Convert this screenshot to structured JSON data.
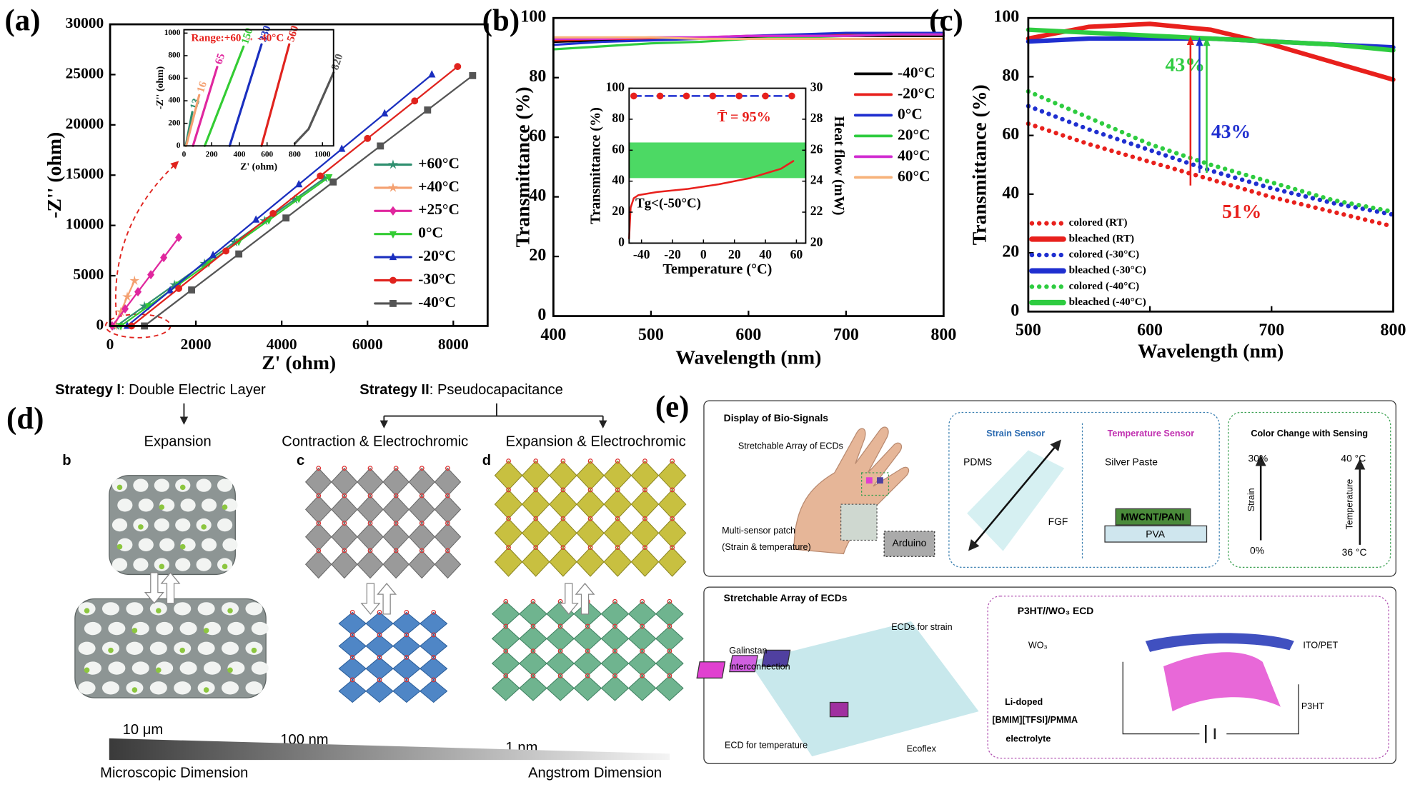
{
  "panel_labels": [
    "(a)",
    "(b)",
    "(c)",
    "(d)",
    "(e)"
  ],
  "chart_data": [
    {
      "type": "line",
      "xlabel": "Z' (ohm)",
      "ylabel": "-Z'' (ohm)",
      "xlim": [
        0,
        8800
      ],
      "xticks": [
        0,
        2000,
        4000,
        6000,
        8000
      ],
      "ylim": [
        0,
        30000
      ],
      "yticks": [
        0,
        5000,
        10000,
        15000,
        20000,
        25000,
        30000
      ],
      "legend": "lower right",
      "series": [
        {
          "name": "+60°C",
          "color": "#2f8f6f",
          "marker": "star",
          "x": [
            150,
            800,
            1500,
            2200,
            2900,
            3600,
            4300,
            5000
          ],
          "values": [
            0,
            1970,
            4090,
            6210,
            8330,
            10450,
            12570,
            14700
          ]
        },
        {
          "name": "+40°C",
          "color": "#f4a070",
          "marker": "star",
          "x": [
            100,
            250,
            400,
            570
          ],
          "values": [
            0,
            1400,
            2900,
            4500
          ]
        },
        {
          "name": "+25°C",
          "color": "#e0279e",
          "marker": "diamond",
          "x": [
            50,
            350,
            650,
            950,
            1250,
            1600
          ],
          "values": [
            0,
            1700,
            3400,
            5100,
            6800,
            8800
          ]
        },
        {
          "name": " 0°C",
          "color": "#33cc33",
          "marker": "triangle-down",
          "x": [
            250,
            900,
            1600,
            2300,
            3000,
            3700,
            4400,
            5100
          ],
          "values": [
            0,
            1980,
            4120,
            6250,
            8390,
            10520,
            12660,
            14800
          ]
        },
        {
          "name": "-20°C",
          "color": "#1a2fbf",
          "marker": "triangle",
          "x": [
            400,
            1400,
            2400,
            3400,
            4400,
            5400,
            6400,
            7500
          ],
          "values": [
            0,
            3520,
            7040,
            10560,
            14080,
            17600,
            21120,
            25000
          ]
        },
        {
          "name": "-30°C",
          "color": "#e0231e",
          "marker": "circle",
          "x": [
            500,
            1600,
            2700,
            3800,
            4900,
            6000,
            7100,
            8100
          ],
          "values": [
            0,
            3730,
            7460,
            11190,
            14920,
            18650,
            22380,
            25800
          ]
        },
        {
          "name": "-40°C",
          "color": "#555555",
          "marker": "square",
          "x": [
            800,
            1900,
            3000,
            4100,
            5200,
            6300,
            7400,
            8450
          ],
          "values": [
            0,
            3580,
            7160,
            10740,
            14320,
            17900,
            21480,
            24900
          ]
        }
      ]
    },
    {
      "type": "line",
      "title": "Range:+60 → -40°C",
      "title_color": "#e8201c",
      "xlabel": "Z' (ohm)",
      "ylabel": "-Z'' (ohm)",
      "xlim": [
        0,
        1080
      ],
      "xticks": [
        0,
        200,
        400,
        600,
        800,
        1000
      ],
      "ylim": [
        0,
        1030
      ],
      "yticks": [
        0,
        200,
        400,
        600,
        800,
        1000
      ],
      "series": [
        {
          "name": "13",
          "color": "#2f8f6f",
          "x": [
            13,
            60
          ],
          "values": [
            0,
            300
          ]
        },
        {
          "name": "16",
          "color": "#f4a070",
          "x": [
            16,
            110
          ],
          "values": [
            0,
            450
          ]
        },
        {
          "name": "65",
          "color": "#e0279e",
          "x": [
            65,
            240
          ],
          "values": [
            0,
            700
          ]
        },
        {
          "name": "150",
          "color": "#33cc33",
          "x": [
            150,
            430
          ],
          "values": [
            0,
            880
          ]
        },
        {
          "name": "330",
          "color": "#1a2fbf",
          "x": [
            330,
            560
          ],
          "values": [
            0,
            900
          ]
        },
        {
          "name": "560",
          "color": "#e0231e",
          "x": [
            560,
            760
          ],
          "values": [
            0,
            900
          ]
        },
        {
          "name": "820",
          "color": "#555555",
          "x": [
            800,
            900,
            1080
          ],
          "values": [
            20,
            150,
            650
          ]
        }
      ]
    },
    {
      "type": "line",
      "xlabel": "Wavelength (nm)",
      "ylabel": "Transmittance (%)",
      "xlim": [
        400,
        800
      ],
      "xticks": [
        400,
        500,
        600,
        700,
        800
      ],
      "ylim": [
        0,
        100
      ],
      "yticks": [
        0,
        20,
        40,
        60,
        80,
        100
      ],
      "legend": "upper right",
      "series": [
        {
          "name": "-40°C",
          "color": "#000000",
          "x": [
            400,
            450,
            500,
            550,
            600,
            650,
            700,
            750,
            800
          ],
          "values": [
            92,
            92.5,
            93,
            93,
            93.5,
            94,
            94,
            94,
            94
          ]
        },
        {
          "name": "-20°C",
          "color": "#e8201c",
          "x": [
            400,
            450,
            500,
            550,
            600,
            650,
            700,
            750,
            800
          ],
          "values": [
            92.5,
            93,
            93,
            93.5,
            94,
            94,
            94.5,
            94.5,
            94.5
          ]
        },
        {
          "name": "0°C",
          "color": "#1f2fd0",
          "x": [
            400,
            450,
            500,
            550,
            600,
            650,
            700,
            750,
            800
          ],
          "values": [
            91,
            92,
            92.5,
            93,
            94,
            94.5,
            95,
            95,
            95
          ]
        },
        {
          "name": "20°C",
          "color": "#2ecc40",
          "x": [
            400,
            450,
            500,
            550,
            600,
            650,
            700,
            750,
            800
          ],
          "values": [
            89.5,
            90.5,
            91.5,
            92,
            93,
            93.5,
            94,
            94.5,
            94.5
          ]
        },
        {
          "name": "40°C",
          "color": "#d02ad0",
          "x": [
            400,
            450,
            500,
            550,
            600,
            650,
            700,
            750,
            800
          ],
          "values": [
            93,
            93,
            93.5,
            93.5,
            94,
            94,
            94,
            94.5,
            94.5
          ]
        },
        {
          "name": "60°C",
          "color": "#f7b27a",
          "x": [
            400,
            450,
            500,
            550,
            600,
            650,
            700,
            750,
            800
          ],
          "values": [
            93.5,
            93.5,
            93.5,
            93,
            93,
            93,
            93,
            93,
            93
          ]
        }
      ]
    },
    {
      "type": "line",
      "xlabel": "Temperature (°C)",
      "ylabel": "Transmittance (%)",
      "y2label": "Heat flow (mW)",
      "xlim": [
        -48,
        66
      ],
      "xticks": [
        -40,
        -20,
        0,
        20,
        40,
        60
      ],
      "ylim": [
        0,
        100
      ],
      "yticks": [
        0,
        20,
        40,
        60,
        80,
        100
      ],
      "y2lim": [
        20,
        30
      ],
      "y2ticks": [
        20,
        22,
        24,
        26,
        28,
        30
      ],
      "shaded_region": [
        42,
        65
      ],
      "shaded_color": "#4cd964",
      "annotations": [
        {
          "text": "T̄ = 95%",
          "color": "#e8201c"
        },
        {
          "text": "Tg<(-50°C)",
          "color": "#000000"
        }
      ],
      "series": [
        {
          "color": "#1f2fd0",
          "line": "dashed",
          "marker": "circle",
          "marker_color": "#e8201c",
          "x": [
            -45,
            -28,
            -11,
            6,
            23,
            40,
            57
          ],
          "values": [
            95,
            95,
            95,
            95,
            95,
            95,
            95
          ]
        },
        {
          "color": "#e8201c",
          "axis": "y2",
          "x": [
            -48,
            -47,
            -45,
            -42,
            -30,
            -10,
            10,
            30,
            50,
            58
          ],
          "values": [
            20.3,
            22.3,
            22.9,
            23.1,
            23.3,
            23.5,
            23.8,
            24.2,
            24.8,
            25.3
          ]
        }
      ]
    },
    {
      "type": "line",
      "xlabel": "Wavelength (nm)",
      "ylabel": "Transmittance (%)",
      "xlim": [
        500,
        800
      ],
      "xticks": [
        500,
        600,
        700,
        800
      ],
      "ylim": [
        0,
        100
      ],
      "yticks": [
        0,
        20,
        40,
        60,
        80,
        100
      ],
      "legend": "lower left",
      "annotations": [
        {
          "text": "43%",
          "color": "#2ecc40"
        },
        {
          "text": "43%",
          "color": "#1f2fd0"
        },
        {
          "text": "51%",
          "color": "#e8201c"
        }
      ],
      "series": [
        {
          "name": "colored   (RT)",
          "color": "#e8201c",
          "line": "dotted",
          "x": [
            500,
            550,
            600,
            650,
            700,
            750,
            800
          ],
          "values": [
            64,
            57,
            51,
            45,
            39,
            34,
            29
          ]
        },
        {
          "name": "bleached (RT)",
          "color": "#e8201c",
          "x": [
            500,
            550,
            600,
            650,
            700,
            750,
            800
          ],
          "values": [
            93,
            97,
            98,
            96,
            91,
            85,
            79
          ]
        },
        {
          "name": "colored   (-30°C)",
          "color": "#1f2fd0",
          "line": "dotted",
          "x": [
            500,
            550,
            600,
            650,
            700,
            750,
            800
          ],
          "values": [
            70,
            62,
            55,
            48,
            42,
            37,
            33
          ]
        },
        {
          "name": "bleached (-30°C)",
          "color": "#1f2fd0",
          "x": [
            500,
            550,
            600,
            650,
            700,
            750,
            800
          ],
          "values": [
            92,
            93,
            93,
            93,
            92,
            91,
            90
          ]
        },
        {
          "name": "colored   (-40°C)",
          "color": "#2ecc40",
          "line": "dotted",
          "x": [
            500,
            550,
            600,
            650,
            700,
            750,
            800
          ],
          "values": [
            75,
            66,
            57,
            50,
            44,
            38,
            34
          ]
        },
        {
          "name": "bleached (-40°C)",
          "color": "#2ecc40",
          "x": [
            500,
            550,
            600,
            650,
            700,
            750,
            800
          ],
          "values": [
            96,
            95,
            94,
            93,
            92,
            91,
            89
          ]
        }
      ]
    }
  ],
  "diagrams": {
    "d": {
      "strategy_1": {
        "label": "Strategy I",
        "text": ": Double Electric Layer"
      },
      "strategy_2": {
        "label": "Strategy II",
        "text": ": Pseudocapacitance"
      },
      "mechanisms": [
        "Expansion",
        "Contraction & Electrochromic",
        "Expansion & Electrochromic"
      ],
      "sublabels": [
        "b",
        "c",
        "d"
      ],
      "scales": [
        "10 μm",
        "100 nm",
        "1 nm"
      ],
      "dimensions": [
        "Microscopic Dimension",
        "Angstrom Dimension"
      ]
    },
    "e": {
      "top": {
        "title": "Display of Bio-Signals",
        "array": "Stretchable Array of ECDs",
        "patch": [
          "Multi-sensor patch",
          "(Strain & temperature)"
        ],
        "arduino": "Arduino",
        "strain_sensor": {
          "title": "Strain Sensor",
          "parts": [
            "PDMS",
            "FGF"
          ]
        },
        "temperature_sensor": {
          "title": "Temperature Sensor",
          "parts": [
            "Silver Paste",
            "MWCNT/PANI",
            "PVA"
          ]
        },
        "color_change": {
          "title": "Color Change with Sensing",
          "strain": [
            "30%",
            "Strain",
            "0%"
          ],
          "temperature": [
            "40 °C",
            "Temperature",
            "36 °C"
          ]
        }
      },
      "bottom": {
        "title": "Stretchable Array of ECDs",
        "labels": [
          "Galinstan",
          "interconnection",
          "ECDs for strain",
          "ECD for temperature",
          "Ecoflex"
        ],
        "device": {
          "title": "P3HT//WO₃ ECD",
          "labels": [
            "WO₃",
            "ITO/PET",
            "Li-doped",
            "[BMIM][TFSI]/PMMA",
            "electrolyte",
            "P3HT"
          ]
        }
      }
    }
  }
}
